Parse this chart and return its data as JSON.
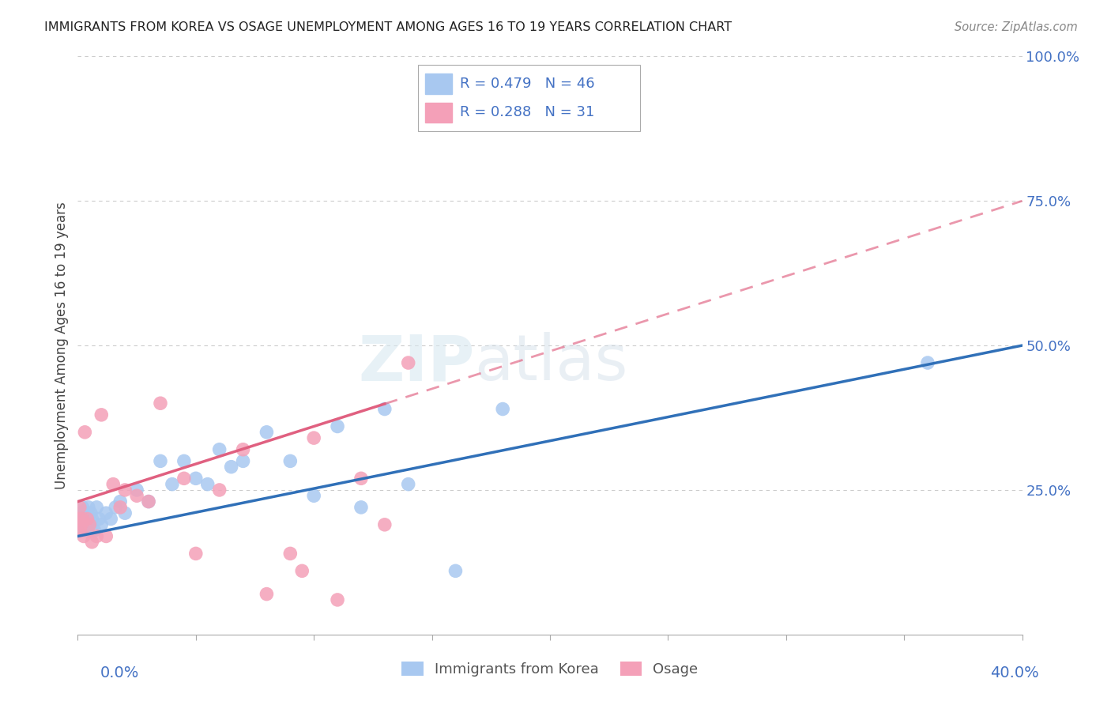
{
  "title": "IMMIGRANTS FROM KOREA VS OSAGE UNEMPLOYMENT AMONG AGES 16 TO 19 YEARS CORRELATION CHART",
  "source": "Source: ZipAtlas.com",
  "ylabel": "Unemployment Among Ages 16 to 19 years",
  "legend_label_blue": "Immigrants from Korea",
  "legend_label_pink": "Osage",
  "blue_R": 0.479,
  "blue_N": 46,
  "pink_R": 0.288,
  "pink_N": 31,
  "blue_color": "#a8c8f0",
  "pink_color": "#f4a0b8",
  "blue_line_color": "#3070b8",
  "pink_line_color": "#e06080",
  "xlim": [
    0,
    40
  ],
  "ylim": [
    0,
    100
  ],
  "ytick_vals": [
    0,
    25,
    50,
    75,
    100
  ],
  "blue_intercept": 17,
  "blue_slope": 0.825,
  "pink_intercept": 23,
  "pink_slope": 1.3,
  "pink_solid_end": 13,
  "blue_points_x": [
    0.05,
    0.08,
    0.1,
    0.12,
    0.15,
    0.18,
    0.2,
    0.22,
    0.25,
    0.28,
    0.3,
    0.35,
    0.4,
    0.45,
    0.5,
    0.55,
    0.6,
    0.7,
    0.8,
    0.9,
    1.0,
    1.2,
    1.4,
    1.6,
    1.8,
    2.0,
    2.5,
    3.0,
    3.5,
    4.0,
    4.5,
    5.0,
    5.5,
    6.0,
    6.5,
    7.0,
    8.0,
    9.0,
    10.0,
    11.0,
    12.0,
    13.0,
    14.0,
    16.0,
    18.0,
    36.0
  ],
  "blue_points_y": [
    19,
    20,
    18,
    21,
    20,
    19,
    22,
    18,
    20,
    19,
    21,
    20,
    18,
    22,
    19,
    21,
    20,
    18,
    22,
    20,
    19,
    21,
    20,
    22,
    23,
    21,
    25,
    23,
    30,
    26,
    30,
    27,
    26,
    32,
    29,
    30,
    35,
    30,
    24,
    36,
    22,
    39,
    26,
    11,
    39,
    47
  ],
  "pink_points_x": [
    0.05,
    0.08,
    0.1,
    0.15,
    0.2,
    0.25,
    0.3,
    0.4,
    0.5,
    0.6,
    0.8,
    1.0,
    1.2,
    1.5,
    1.8,
    2.0,
    2.5,
    3.0,
    3.5,
    4.5,
    5.0,
    6.0,
    7.0,
    8.0,
    9.0,
    9.5,
    10.0,
    11.0,
    12.0,
    13.0,
    14.0
  ],
  "pink_points_y": [
    20,
    22,
    18,
    19,
    20,
    17,
    35,
    20,
    19,
    16,
    17,
    38,
    17,
    26,
    22,
    25,
    24,
    23,
    40,
    27,
    14,
    25,
    32,
    7,
    14,
    11,
    34,
    6,
    27,
    19,
    47
  ]
}
